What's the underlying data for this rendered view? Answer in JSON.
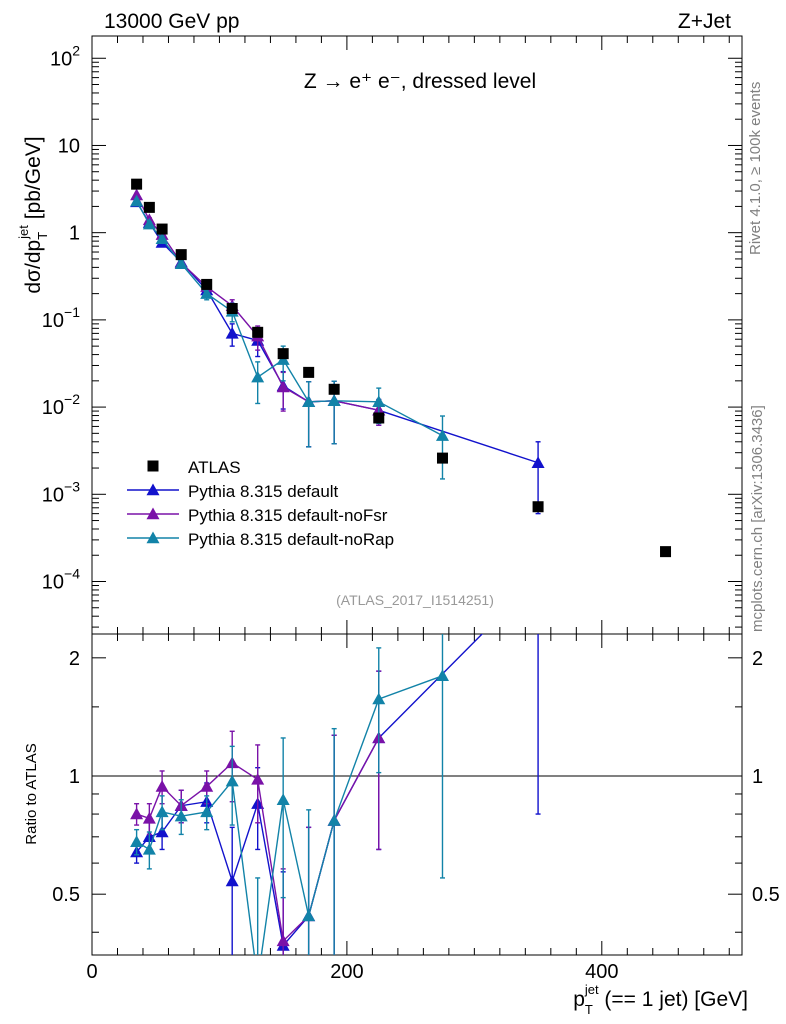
{
  "header": {
    "left": "13000 GeV pp",
    "right": "Z+Jet"
  },
  "side_labels": {
    "rivet": "Rivet 4.1.0, ≥ 100k events",
    "mcplots": "mcplots.cern.ch [arXiv:1306.3436]"
  },
  "chart_data": {
    "type": "scatter",
    "title": "Z → e⁺ e⁻, dressed level",
    "analysis_id": "(ATLAS_2017_I1514251)",
    "xlabel": "p_T^jet (== 1 jet) [GeV]",
    "xlabel_parts": {
      "p": "p",
      "sub": "T",
      "sup": "jet",
      "rest": " (== 1 jet) [GeV]"
    },
    "ylabel": "dσ/dp_T^jet [pb/GeV]",
    "ylabel_parts": {
      "pre": "dσ/dp",
      "sub": "T",
      "sup": "jet",
      "rest": " [pb/GeV]"
    },
    "ratio_ylabel": "Ratio to ATLAS",
    "xlim": [
      0,
      510
    ],
    "ylim": [
      2.5e-05,
      180
    ],
    "ratio_ylim": [
      0.35,
      2.3
    ],
    "x_ticks": [
      0,
      200,
      400
    ],
    "x_tick_labels": [
      "0",
      "200",
      "400"
    ],
    "y_ticks": [
      {
        "v": 100,
        "base": "10",
        "exp": "2"
      },
      {
        "v": 10,
        "base": "10",
        "exp": ""
      },
      {
        "v": 1,
        "base": "1",
        "exp": ""
      },
      {
        "v": 0.1,
        "base": "10",
        "exp": "−1"
      },
      {
        "v": 0.01,
        "base": "10",
        "exp": "−2"
      },
      {
        "v": 0.001,
        "base": "10",
        "exp": "−3"
      },
      {
        "v": 0.0001,
        "base": "10",
        "exp": "−4"
      }
    ],
    "ratio_ticks": [
      0.5,
      1,
      2
    ],
    "ratio_tick_labels": [
      "0.5",
      "1",
      "2"
    ],
    "legend": [
      {
        "label": "ATLAS",
        "marker": "square",
        "color": "#000000"
      },
      {
        "label": "Pythia 8.315 default",
        "marker": "triangle",
        "color": "#1212cc"
      },
      {
        "label": "Pythia 8.315 default-noFsr",
        "marker": "triangle",
        "color": "#7a12a8"
      },
      {
        "label": "Pythia 8.315 default-noRap",
        "marker": "triangle",
        "color": "#1283a8"
      }
    ],
    "data": {
      "name": "ATLAS",
      "x": [
        35,
        45,
        55,
        70,
        90,
        110,
        130,
        150,
        170,
        190,
        225,
        275,
        350,
        450
      ],
      "y": [
        3.6,
        1.95,
        1.1,
        0.56,
        0.255,
        0.135,
        0.072,
        0.041,
        0.025,
        0.016,
        0.0075,
        0.0026,
        0.00072,
        0.00022
      ]
    },
    "series": [
      {
        "name": "Pythia 8.315 default",
        "color": "#1212cc",
        "x": [
          35,
          45,
          55,
          70,
          90,
          110,
          130,
          150,
          170,
          190,
          225,
          350
        ],
        "y": [
          2.25,
          1.3,
          0.77,
          0.46,
          0.22,
          0.07,
          0.058,
          0.0175,
          0.0115,
          0.0118,
          0.0092,
          0.0023
        ],
        "yerr": [
          0.12,
          0.08,
          0.06,
          0.04,
          0.025,
          0.02,
          0.02,
          0.008,
          0.008,
          0.008,
          0.003,
          0.0017
        ],
        "ratio": [
          0.64,
          0.7,
          0.72,
          0.84,
          0.86,
          0.54,
          0.85,
          0.37,
          0.44,
          0.77,
          1.25,
          3.2
        ],
        "ratio_err": [
          0.04,
          0.06,
          0.07,
          0.08,
          0.1,
          0.2,
          0.2,
          0.2,
          0.3,
          0.5,
          0.6,
          2.4
        ]
      },
      {
        "name": "Pythia 8.315 default-noFsr",
        "color": "#7a12a8",
        "x": [
          35,
          45,
          55,
          70,
          90,
          110,
          130,
          150,
          170,
          190,
          225
        ],
        "y": [
          2.7,
          1.4,
          0.95,
          0.45,
          0.24,
          0.145,
          0.065,
          0.017,
          0.0115,
          0.0118,
          0.0092
        ],
        "yerr": [
          0.12,
          0.08,
          0.06,
          0.04,
          0.025,
          0.025,
          0.02,
          0.008,
          0.008,
          0.008,
          0.003
        ],
        "ratio": [
          0.8,
          0.78,
          0.94,
          0.84,
          0.94,
          1.08,
          0.98,
          0.38,
          0.44,
          0.77,
          1.25
        ],
        "ratio_err": [
          0.05,
          0.07,
          0.09,
          0.08,
          0.09,
          0.22,
          0.22,
          0.2,
          0.3,
          0.5,
          0.6
        ]
      },
      {
        "name": "Pythia 8.315 default-noRap",
        "color": "#1283a8",
        "x": [
          35,
          45,
          55,
          70,
          90,
          110,
          130,
          150,
          170,
          190,
          225,
          275
        ],
        "y": [
          2.3,
          1.25,
          0.85,
          0.44,
          0.2,
          0.125,
          0.022,
          0.035,
          0.0115,
          0.0118,
          0.0115,
          0.0047
        ],
        "yerr": [
          0.12,
          0.08,
          0.06,
          0.04,
          0.03,
          0.03,
          0.011,
          0.015,
          0.008,
          0.008,
          0.005,
          0.0032
        ],
        "ratio": [
          0.68,
          0.65,
          0.81,
          0.79,
          0.81,
          0.97,
          0.3,
          0.87,
          0.44,
          0.77,
          1.57,
          1.8
        ],
        "ratio_err": [
          0.05,
          0.07,
          0.08,
          0.08,
          0.08,
          0.22,
          0.25,
          0.38,
          0.38,
          0.55,
          0.55,
          1.25
        ]
      }
    ]
  }
}
